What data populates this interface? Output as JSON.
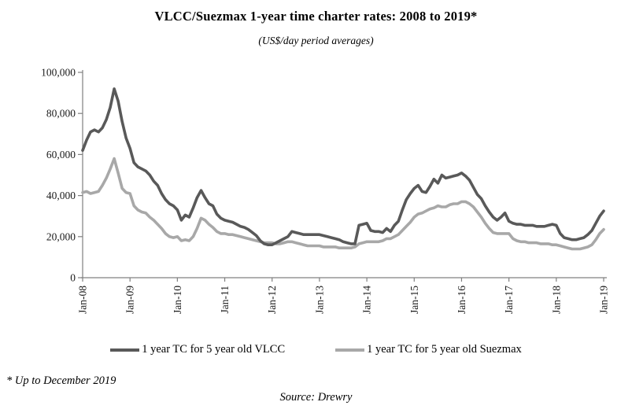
{
  "header": {
    "title": "VLCC/Suezmax 1-year time charter rates: 2008 to 2019*",
    "subtitle": "(US$/day period averages)"
  },
  "chart_data": {
    "type": "line",
    "title": "VLCC/Suezmax 1-year time charter rates: 2008 to 2019*",
    "subtitle": "(US$/day period averages)",
    "x_unit": "month",
    "x_range": [
      "Jan-08",
      "Jan-19"
    ],
    "x_tick_labels": [
      "Jan-08",
      "Jan-09",
      "Jan-10",
      "Jan-11",
      "Jan-12",
      "Jan-13",
      "Jan-14",
      "Jan-15",
      "Jan-16",
      "Jan-17",
      "Jan-18",
      "Jan-19"
    ],
    "y_ticks": [
      0,
      20000,
      40000,
      60000,
      80000,
      100000
    ],
    "y_tick_labels": [
      "0",
      "20,000",
      "40,000",
      "60,000",
      "80,000",
      "100,000"
    ],
    "ylim": [
      0,
      100000
    ],
    "grid": false,
    "legend_position": "bottom",
    "axis_color": "#808080",
    "text_color": "#1a1a1a",
    "series": [
      {
        "id": "vlcc",
        "name": "1 year TC for 5 year old VLCC",
        "color": "#595959",
        "values": [
          62000,
          67000,
          71000,
          72000,
          71000,
          73000,
          77000,
          83000,
          92000,
          86000,
          76000,
          68000,
          63000,
          56000,
          54000,
          53000,
          52000,
          50000,
          47000,
          45000,
          41000,
          38000,
          36000,
          35000,
          33000,
          28000,
          30500,
          29500,
          34000,
          39000,
          42500,
          39000,
          36000,
          35000,
          31000,
          29000,
          28000,
          27500,
          27000,
          26000,
          25000,
          24500,
          23500,
          22000,
          20500,
          18000,
          16500,
          16000,
          16000,
          17000,
          18000,
          19000,
          20000,
          22500,
          22000,
          21500,
          21000,
          21000,
          21000,
          21000,
          21000,
          20500,
          20000,
          19500,
          19000,
          18500,
          17500,
          17000,
          16500,
          16500,
          25500,
          26000,
          26500,
          23000,
          22500,
          22500,
          22000,
          24000,
          22500,
          25500,
          27500,
          33000,
          38000,
          41000,
          43500,
          45000,
          42000,
          41500,
          44500,
          48000,
          46000,
          50000,
          48500,
          49000,
          49500,
          50000,
          51000,
          49500,
          47500,
          44000,
          40500,
          38500,
          35000,
          32000,
          29500,
          28000,
          29500,
          31500,
          27500,
          26500,
          26000,
          26000,
          25500,
          25500,
          25500,
          25000,
          25000,
          25000,
          25500,
          26000,
          25500,
          21500,
          19500,
          19000,
          18500,
          18500,
          19000,
          19500,
          21000,
          23000,
          26500,
          30000,
          32500
        ]
      },
      {
        "id": "suezmax",
        "name": "1 year TC for 5 year old Suezmax",
        "color": "#a8a8a8",
        "values": [
          41500,
          42000,
          41000,
          41500,
          42000,
          45000,
          48500,
          53000,
          58000,
          51000,
          43500,
          41500,
          41000,
          35000,
          33000,
          32000,
          31500,
          29500,
          28000,
          26000,
          24000,
          21500,
          20000,
          19500,
          20000,
          18000,
          18500,
          18000,
          20000,
          24000,
          29000,
          28000,
          26000,
          24500,
          22500,
          21500,
          21500,
          21000,
          21000,
          20500,
          20000,
          19500,
          19000,
          18500,
          18000,
          17500,
          17000,
          17000,
          17000,
          16500,
          16500,
          17000,
          17500,
          17500,
          17000,
          16500,
          16000,
          15500,
          15500,
          15500,
          15500,
          15000,
          15000,
          15000,
          15000,
          14500,
          14500,
          14500,
          14500,
          15000,
          16500,
          17000,
          17500,
          17500,
          17500,
          17500,
          18000,
          19000,
          19000,
          20000,
          21000,
          23000,
          25000,
          27000,
          29500,
          31000,
          31500,
          32500,
          33500,
          34000,
          35000,
          34500,
          34500,
          35500,
          36000,
          36000,
          37000,
          37000,
          36000,
          34500,
          32000,
          29500,
          26500,
          24000,
          22000,
          21500,
          21500,
          21500,
          21500,
          19000,
          18000,
          17500,
          17500,
          17000,
          17000,
          17000,
          16500,
          16500,
          16500,
          16000,
          16000,
          15500,
          15000,
          14500,
          14000,
          14000,
          14000,
          14500,
          15000,
          16000,
          18500,
          21500,
          23500
        ]
      }
    ]
  },
  "legend": {
    "vlcc_label": "1 year TC for 5 year old VLCC",
    "suezmax_label": "1 year TC for 5 year old Suezmax"
  },
  "footer": {
    "footnote": "* Up to December 2019",
    "source": "Source: Drewry"
  }
}
